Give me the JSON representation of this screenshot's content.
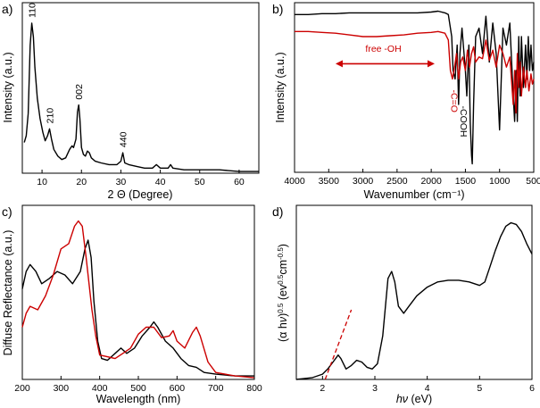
{
  "colors": {
    "black": "#000000",
    "red": "#cc0000"
  },
  "chart_data": [
    {
      "panel": "a)",
      "type": "line",
      "xlabel": "2 Θ (Degree)",
      "ylabel": "Intensity (a.u.)",
      "xlim": [
        5,
        65
      ],
      "xticks": [
        10,
        20,
        30,
        40,
        50,
        60
      ],
      "xtick_labels": [
        "10",
        "20",
        "30",
        "40",
        "50",
        "60"
      ],
      "ylim": [
        0,
        100
      ],
      "series": [
        {
          "name": "XRD",
          "color": "#000000",
          "x": [
            5.5,
            6.0,
            6.5,
            7.0,
            7.4,
            7.8,
            8.2,
            8.8,
            9.5,
            10.2,
            10.8,
            11.4,
            11.9,
            12.4,
            13.0,
            14.0,
            15.0,
            16.0,
            17.0,
            17.6,
            18.0,
            18.6,
            19.0,
            19.3,
            19.6,
            20.0,
            20.5,
            21.0,
            21.5,
            22.0,
            22.5,
            23.5,
            25.0,
            27.0,
            29.0,
            30.0,
            30.5,
            31.0,
            32.0,
            34.0,
            36.0,
            38.0,
            39.0,
            40.0,
            42.0,
            42.6,
            43.2,
            46.0,
            50.0,
            55.0,
            60.0,
            65.0
          ],
          "y": [
            18,
            22,
            35,
            75,
            88,
            80,
            62,
            44,
            32,
            24,
            19,
            22,
            26,
            20,
            14,
            10,
            8,
            9,
            14,
            16,
            15,
            20,
            36,
            40,
            32,
            15,
            11,
            10,
            13,
            12,
            9,
            7,
            6,
            5,
            5,
            7,
            12,
            6,
            5,
            4,
            3,
            3,
            5,
            3,
            3,
            5,
            3,
            2,
            2,
            2,
            1,
            1
          ]
        }
      ],
      "peak_labels": [
        {
          "x": 7.4,
          "y": 88,
          "label": "110"
        },
        {
          "x": 11.9,
          "y": 26,
          "label": "210"
        },
        {
          "x": 19.3,
          "y": 40,
          "label": "002"
        },
        {
          "x": 30.5,
          "y": 12,
          "label": "440"
        }
      ]
    },
    {
      "panel": "b)",
      "type": "line",
      "xlabel": "Wavenumber (cm⁻¹)",
      "ylabel": "Intensity (a.u.)",
      "xlim": [
        4000,
        500
      ],
      "xticks": [
        4000,
        3500,
        3000,
        2500,
        2000,
        1500,
        1000,
        500
      ],
      "xtick_labels": [
        "4000",
        "3500",
        "3000",
        "2500",
        "2000",
        "1500",
        "1000",
        "500"
      ],
      "ylim": [
        0,
        100
      ],
      "series": [
        {
          "name": "black",
          "color": "#000000",
          "x": [
            4000,
            3800,
            3600,
            3400,
            3200,
            3000,
            2800,
            2600,
            2400,
            2200,
            2000,
            1900,
            1800,
            1750,
            1700,
            1680,
            1650,
            1620,
            1600,
            1580,
            1550,
            1500,
            1480,
            1450,
            1430,
            1410,
            1400,
            1380,
            1350,
            1300,
            1250,
            1200,
            1150,
            1100,
            1050,
            1000,
            950,
            900,
            850,
            800,
            780,
            760,
            740,
            720,
            700,
            680,
            650,
            620,
            600,
            580,
            560,
            540,
            520,
            500
          ],
          "y": [
            93,
            93,
            93.5,
            93.5,
            94,
            94,
            94,
            94,
            94,
            94,
            94.5,
            95,
            94,
            93,
            80,
            60,
            55,
            75,
            40,
            70,
            85,
            60,
            45,
            75,
            30,
            10,
            5,
            40,
            80,
            85,
            70,
            92,
            65,
            88,
            70,
            25,
            85,
            75,
            88,
            45,
            30,
            60,
            30,
            80,
            45,
            80,
            50,
            75,
            55,
            80,
            60,
            75,
            60,
            65
          ]
        },
        {
          "name": "red",
          "color": "#cc0000",
          "x": [
            4000,
            3800,
            3600,
            3400,
            3200,
            3000,
            2800,
            2600,
            2400,
            2200,
            2000,
            1900,
            1800,
            1750,
            1720,
            1690,
            1660,
            1630,
            1600,
            1570,
            1540,
            1500,
            1470,
            1440,
            1410,
            1380,
            1350,
            1300,
            1250,
            1200,
            1150,
            1100,
            1050,
            1000,
            950,
            900,
            850,
            800,
            780,
            760,
            740,
            720,
            700,
            680,
            650,
            620,
            600,
            570,
            540,
            520,
            500
          ],
          "y": [
            83,
            83,
            82.5,
            82,
            81,
            80,
            80,
            80.5,
            81,
            82,
            82.5,
            83,
            82,
            78,
            60,
            55,
            62,
            70,
            55,
            65,
            68,
            60,
            72,
            62,
            70,
            74,
            65,
            68,
            67,
            78,
            66,
            72,
            62,
            75,
            70,
            62,
            68,
            40,
            60,
            35,
            70,
            50,
            65,
            45,
            62,
            50,
            60,
            48,
            58,
            52,
            55
          ]
        }
      ],
      "annotations": [
        {
          "x": 2700,
          "y": 71,
          "text": "free -OH",
          "color": "#cc0000"
        },
        {
          "x": 1710,
          "y": 42,
          "text": "-C=O",
          "color": "#cc0000"
        },
        {
          "x": 1570,
          "y": 30,
          "text": "-COOH",
          "color": "#000000"
        }
      ],
      "arrow": {
        "x1": 3400,
        "x2": 1950,
        "y": 64
      }
    },
    {
      "panel": "c)",
      "type": "line",
      "xlabel": "Wavelength (nm)",
      "ylabel": "Diffuse Reflectance (a.u.)",
      "xlim": [
        200,
        800
      ],
      "xticks": [
        200,
        300,
        400,
        500,
        600,
        700,
        800
      ],
      "xtick_labels": [
        "200",
        "300",
        "400",
        "500",
        "600",
        "700",
        "800"
      ],
      "ylim": [
        0,
        100
      ],
      "series": [
        {
          "name": "black",
          "color": "#000000",
          "x": [
            200,
            210,
            220,
            235,
            250,
            270,
            290,
            310,
            330,
            350,
            362,
            370,
            378,
            385,
            395,
            405,
            420,
            440,
            455,
            470,
            490,
            510,
            530,
            540,
            550,
            570,
            590,
            610,
            630,
            650,
            670,
            700,
            750,
            800
          ],
          "y": [
            52,
            62,
            66,
            62,
            55,
            58,
            62,
            60,
            55,
            62,
            75,
            80,
            70,
            45,
            22,
            12,
            11,
            15,
            18,
            15,
            18,
            25,
            30,
            33,
            30,
            22,
            18,
            12,
            8,
            7,
            4,
            3,
            2,
            2
          ]
        },
        {
          "name": "red",
          "color": "#cc0000",
          "x": [
            200,
            210,
            220,
            240,
            260,
            280,
            300,
            320,
            335,
            345,
            355,
            365,
            380,
            390,
            400,
            420,
            440,
            460,
            480,
            500,
            520,
            540,
            560,
            580,
            590,
            600,
            620,
            640,
            650,
            660,
            680,
            700,
            750,
            800
          ],
          "y": [
            30,
            38,
            42,
            40,
            48,
            60,
            75,
            78,
            88,
            91,
            88,
            70,
            40,
            25,
            14,
            13,
            12,
            15,
            18,
            26,
            30,
            30,
            24,
            25,
            28,
            22,
            18,
            27,
            30,
            25,
            10,
            4,
            2,
            1
          ]
        }
      ]
    },
    {
      "panel": "d)",
      "type": "line",
      "xlabel": "hν (eV)",
      "ylabel": "(α hν)^0.5 (ev^0.5 cm^-0.5)",
      "xlim": [
        1.5,
        6
      ],
      "xticks": [
        2,
        3,
        4,
        5,
        6
      ],
      "xtick_labels": [
        "2",
        "3",
        "4",
        "5",
        "6"
      ],
      "ylim": [
        0,
        100
      ],
      "series": [
        {
          "name": "black",
          "color": "#000000",
          "x": [
            1.5,
            1.8,
            2.0,
            2.1,
            2.2,
            2.3,
            2.35,
            2.45,
            2.55,
            2.65,
            2.75,
            2.85,
            2.95,
            3.05,
            3.15,
            3.25,
            3.32,
            3.38,
            3.45,
            3.55,
            3.65,
            3.8,
            4.0,
            4.2,
            4.4,
            4.6,
            4.8,
            5.0,
            5.1,
            5.2,
            5.3,
            5.4,
            5.5,
            5.6,
            5.7,
            5.8,
            5.9,
            6.0
          ],
          "y": [
            0,
            1,
            3,
            6,
            10,
            14,
            12,
            6,
            8,
            11,
            10,
            7,
            6,
            9,
            25,
            58,
            62,
            56,
            42,
            38,
            42,
            48,
            53,
            56,
            57,
            57,
            56,
            54,
            56,
            65,
            74,
            82,
            88,
            90,
            89,
            85,
            78,
            72
          ]
        },
        {
          "name": "tangent",
          "color": "#cc0000",
          "dashed": true,
          "x": [
            2.05,
            2.55
          ],
          "y": [
            0,
            40
          ]
        }
      ]
    }
  ]
}
